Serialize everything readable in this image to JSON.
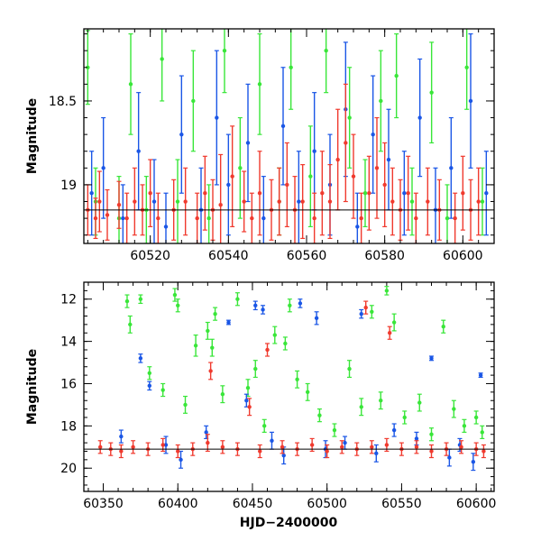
{
  "chart_data": [
    {
      "type": "scatter",
      "title": "",
      "xlabel": "",
      "ylabel": "Magnitude",
      "xlim": [
        60503,
        60608
      ],
      "ylim": [
        19.35,
        18.07
      ],
      "y_inverted": true,
      "grid": false,
      "x_ticks": [
        60520,
        60540,
        60560,
        60580,
        60600
      ],
      "x_tick_labels": [
        "60520",
        "60540",
        "60560",
        "60580",
        "60600"
      ],
      "y_ticks": [
        18.5,
        19
      ],
      "y_tick_labels": [
        "18.5",
        "19"
      ],
      "reference_line": 19.15,
      "series": [
        {
          "color": "#39e639",
          "x": [
            60504,
            60506,
            60512,
            60515,
            60519,
            60523,
            60527,
            60531,
            60535,
            60539,
            60543,
            60548,
            60553,
            60556,
            60561,
            60565,
            60571,
            60575,
            60579,
            60583,
            60587,
            60592,
            60596,
            60601,
            60605
          ],
          "y": [
            18.3,
            19.1,
            19.2,
            18.4,
            19.15,
            18.25,
            19.1,
            18.5,
            19.2,
            18.2,
            18.9,
            18.4,
            19.1,
            18.3,
            18.95,
            18.2,
            18.6,
            19.05,
            18.5,
            18.35,
            19.1,
            18.45,
            19.2,
            18.3,
            19.1
          ],
          "yerr": [
            0.22,
            0.2,
            0.25,
            0.3,
            0.2,
            0.25,
            0.25,
            0.3,
            0.2,
            0.25,
            0.3,
            0.3,
            0.2,
            0.25,
            0.3,
            0.25,
            0.3,
            0.2,
            0.3,
            0.25,
            0.2,
            0.3,
            0.2,
            0.25,
            0.2
          ]
        },
        {
          "color": "#1a56e6",
          "x": [
            60505,
            60508,
            60513,
            60517,
            60521,
            60524,
            60528,
            60533,
            60537,
            60540,
            60545,
            60549,
            60554,
            60558,
            60562,
            60566,
            60570,
            60573,
            60577,
            60581,
            60585,
            60589,
            60593,
            60597,
            60602,
            60606
          ],
          "y": [
            19.05,
            18.9,
            19.2,
            18.8,
            19.1,
            19.25,
            18.7,
            19.15,
            18.6,
            19.0,
            18.75,
            19.2,
            18.65,
            19.1,
            18.8,
            19.0,
            18.55,
            19.25,
            18.7,
            18.85,
            19.05,
            18.6,
            19.15,
            18.9,
            18.5,
            19.05
          ],
          "yerr": [
            0.25,
            0.3,
            0.2,
            0.35,
            0.25,
            0.2,
            0.35,
            0.25,
            0.4,
            0.3,
            0.35,
            0.25,
            0.35,
            0.3,
            0.35,
            0.3,
            0.4,
            0.2,
            0.35,
            0.3,
            0.25,
            0.35,
            0.25,
            0.3,
            0.4,
            0.25
          ]
        },
        {
          "color": "#f03a2e",
          "x": [
            60504,
            60506,
            60507,
            60509,
            60512,
            60514,
            60516,
            60518,
            60520,
            60522,
            60526,
            60529,
            60532,
            60534,
            60536,
            60538,
            60541,
            60544,
            60546,
            60548,
            60551,
            60553,
            60555,
            60557,
            60559,
            60562,
            60564,
            60566,
            60568,
            60570,
            60572,
            60574,
            60576,
            60578,
            60580,
            60582,
            60584,
            60586,
            60588,
            60591,
            60594,
            60598,
            60600,
            60602,
            60604
          ],
          "y": [
            19.15,
            19.2,
            19.1,
            19.18,
            19.12,
            19.2,
            19.1,
            19.15,
            19.05,
            19.2,
            19.15,
            19.1,
            19.2,
            19.05,
            19.15,
            19.12,
            18.95,
            19.1,
            19.2,
            19.05,
            19.15,
            19.1,
            19.0,
            19.15,
            19.1,
            19.2,
            19.05,
            19.1,
            18.85,
            18.75,
            18.95,
            19.2,
            19.05,
            18.9,
            19.0,
            19.1,
            19.15,
            19.05,
            19.2,
            19.1,
            19.15,
            19.2,
            19.05,
            19.15,
            19.1
          ],
          "yerr": [
            0.15,
            0.12,
            0.18,
            0.15,
            0.14,
            0.15,
            0.2,
            0.15,
            0.2,
            0.15,
            0.18,
            0.2,
            0.15,
            0.22,
            0.18,
            0.3,
            0.3,
            0.18,
            0.15,
            0.25,
            0.18,
            0.2,
            0.25,
            0.2,
            0.22,
            0.15,
            0.25,
            0.22,
            0.3,
            0.35,
            0.25,
            0.15,
            0.22,
            0.3,
            0.25,
            0.2,
            0.18,
            0.22,
            0.15,
            0.2,
            0.18,
            0.15,
            0.22,
            0.18,
            0.2
          ]
        }
      ]
    },
    {
      "type": "scatter",
      "title": "",
      "xlabel": "HJD−2400000",
      "ylabel": "Magnitude",
      "xlim": [
        60337,
        60612
      ],
      "ylim": [
        21.1,
        11.2
      ],
      "y_inverted": true,
      "grid": false,
      "x_ticks": [
        60350,
        60400,
        60450,
        60500,
        60550,
        60600
      ],
      "x_tick_labels": [
        "60350",
        "60400",
        "60450",
        "60500",
        "60550",
        "60600"
      ],
      "y_ticks": [
        12,
        14,
        16,
        18,
        20
      ],
      "y_tick_labels": [
        "12",
        "14",
        "16",
        "18",
        "20"
      ],
      "reference_line": 19.1,
      "series": [
        {
          "color": "#39e639",
          "x": [
            60366,
            60368,
            60375,
            60381,
            60390,
            60398,
            60400,
            60405,
            60412,
            60420,
            60423,
            60425,
            60430,
            60440,
            60447,
            60452,
            60458,
            60465,
            60472,
            60475,
            60480,
            60487,
            60495,
            60505,
            60515,
            60523,
            60530,
            60536,
            60540,
            60545,
            60552,
            60562,
            60570,
            60578,
            60585,
            60592,
            60600,
            60604
          ],
          "y": [
            12.1,
            13.2,
            12.0,
            15.5,
            16.3,
            11.8,
            12.3,
            17.0,
            14.2,
            13.5,
            14.3,
            12.7,
            16.5,
            12.0,
            16.2,
            15.3,
            18.0,
            13.7,
            14.1,
            12.3,
            15.8,
            16.4,
            17.5,
            18.2,
            15.3,
            17.1,
            12.6,
            16.8,
            11.6,
            13.1,
            17.6,
            16.9,
            18.4,
            13.3,
            17.2,
            18.0,
            17.6,
            18.3
          ],
          "yerr": [
            0.3,
            0.4,
            0.2,
            0.3,
            0.3,
            0.3,
            0.3,
            0.4,
            0.5,
            0.4,
            0.4,
            0.3,
            0.4,
            0.3,
            0.4,
            0.4,
            0.3,
            0.4,
            0.3,
            0.3,
            0.4,
            0.4,
            0.3,
            0.3,
            0.4,
            0.4,
            0.3,
            0.4,
            0.2,
            0.4,
            0.3,
            0.4,
            0.3,
            0.3,
            0.4,
            0.3,
            0.3,
            0.3
          ]
        },
        {
          "color": "#1a56e6",
          "x": [
            60362,
            60375,
            60381,
            60392,
            60402,
            60419,
            60434,
            60446,
            60452,
            60457,
            60463,
            60471,
            60482,
            60493,
            60499,
            60512,
            60523,
            60533,
            60545,
            60560,
            60570,
            60582,
            60589,
            60598,
            60603
          ],
          "y": [
            18.5,
            14.8,
            16.1,
            18.9,
            19.6,
            18.3,
            13.1,
            16.8,
            12.3,
            12.5,
            18.7,
            19.4,
            12.2,
            12.9,
            19.1,
            18.8,
            12.7,
            19.3,
            18.2,
            18.6,
            14.8,
            19.5,
            18.9,
            19.7,
            15.6
          ],
          "yerr": [
            0.3,
            0.2,
            0.2,
            0.4,
            0.4,
            0.3,
            0.1,
            0.3,
            0.2,
            0.2,
            0.4,
            0.4,
            0.2,
            0.3,
            0.4,
            0.3,
            0.2,
            0.4,
            0.3,
            0.3,
            0.1,
            0.4,
            0.3,
            0.4,
            0.1
          ]
        },
        {
          "color": "#f03a2e",
          "x": [
            60348,
            60355,
            60362,
            60370,
            60380,
            60390,
            60400,
            60410,
            60420,
            60422,
            60430,
            60440,
            60448,
            60455,
            60460,
            60470,
            60480,
            60490,
            60500,
            60510,
            60520,
            60526,
            60530,
            60540,
            60542,
            60550,
            60560,
            60570,
            60580,
            60590,
            60600,
            60605
          ],
          "y": [
            19.0,
            19.1,
            19.2,
            19.0,
            19.1,
            18.9,
            19.2,
            19.1,
            18.8,
            15.4,
            19.0,
            19.1,
            17.1,
            19.2,
            14.4,
            19.0,
            19.1,
            18.9,
            19.2,
            19.0,
            19.1,
            12.4,
            19.0,
            18.9,
            13.6,
            19.1,
            19.0,
            19.2,
            19.1,
            19.0,
            19.1,
            19.2
          ],
          "yerr": [
            0.3,
            0.3,
            0.3,
            0.3,
            0.3,
            0.3,
            0.3,
            0.3,
            0.4,
            0.4,
            0.3,
            0.3,
            0.4,
            0.3,
            0.3,
            0.3,
            0.3,
            0.3,
            0.3,
            0.3,
            0.3,
            0.3,
            0.3,
            0.3,
            0.3,
            0.3,
            0.3,
            0.3,
            0.3,
            0.3,
            0.3,
            0.3
          ]
        }
      ]
    }
  ]
}
